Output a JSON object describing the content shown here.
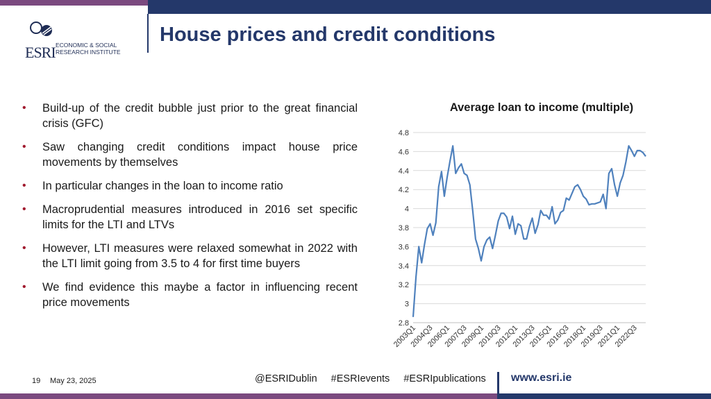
{
  "header": {
    "logo_abbr": "ESRI",
    "logo_line1": "ECONOMIC & SOCIAL",
    "logo_line2": "RESEARCH INSTITUTE",
    "title": "House prices and credit conditions"
  },
  "bullets": [
    "Build-up of the credit bubble just prior to the great financial crisis (GFC)",
    "Saw changing credit conditions impact house price movements by themselves",
    "In particular changes in the loan to income ratio",
    "Macroprudential measures introduced in 2016 set specific limits for the LTI and LTVs",
    "However, LTI measures were relaxed somewhat in 2022 with the LTI limit going from 3.5 to 4 for first time buyers",
    "We find evidence this maybe a factor in influencing recent price movements"
  ],
  "chart_data": {
    "type": "line",
    "title": "Average loan to income (multiple)",
    "xlabel": "",
    "ylabel": "",
    "ylim": [
      2.8,
      4.8
    ],
    "yticks": [
      2.8,
      3,
      3.2,
      3.4,
      3.6,
      3.8,
      4,
      4.2,
      4.4,
      4.6,
      4.8
    ],
    "ytick_labels": [
      "2.8",
      "3",
      "3.2",
      "3.4",
      "3.6",
      "3.8",
      "4",
      "4.2",
      "4.4",
      "4.6",
      "4.8"
    ],
    "x_tick_labels": [
      {
        "index": 0,
        "label": "2003Q1"
      },
      {
        "index": 6,
        "label": "2004Q3"
      },
      {
        "index": 12,
        "label": "2006Q1"
      },
      {
        "index": 18,
        "label": "2007Q3"
      },
      {
        "index": 24,
        "label": "2009Q1"
      },
      {
        "index": 30,
        "label": "2010Q3"
      },
      {
        "index": 36,
        "label": "2012Q1"
      },
      {
        "index": 42,
        "label": "2013Q3"
      },
      {
        "index": 48,
        "label": "2015Q1"
      },
      {
        "index": 54,
        "label": "2016Q3"
      },
      {
        "index": 60,
        "label": "2018Q1"
      },
      {
        "index": 66,
        "label": "2019Q3"
      },
      {
        "index": 72,
        "label": "2021Q1"
      },
      {
        "index": 78,
        "label": "2022Q3"
      }
    ],
    "grid": true,
    "line_color": "#4f81bd",
    "series": [
      {
        "values": [
          2.86,
          3.28,
          3.6,
          3.43,
          3.62,
          3.79,
          3.84,
          3.72,
          3.85,
          4.23,
          4.39,
          4.13,
          4.33,
          4.5,
          4.66,
          4.37,
          4.43,
          4.47,
          4.37,
          4.35,
          4.25,
          3.98,
          3.68,
          3.58,
          3.45,
          3.6,
          3.67,
          3.7,
          3.58,
          3.72,
          3.87,
          3.95,
          3.95,
          3.91,
          3.79,
          3.92,
          3.73,
          3.84,
          3.82,
          3.68,
          3.68,
          3.81,
          3.9,
          3.74,
          3.83,
          3.98,
          3.93,
          3.93,
          3.89,
          4.02,
          3.84,
          3.88,
          3.96,
          3.98,
          4.11,
          4.09,
          4.16,
          4.23,
          4.25,
          4.2,
          4.13,
          4.1,
          4.04,
          4.05,
          4.05,
          4.06,
          4.07,
          4.15,
          4.0,
          4.37,
          4.42,
          4.25,
          4.13,
          4.27,
          4.35,
          4.49,
          4.66,
          4.61,
          4.55,
          4.61,
          4.61,
          4.59,
          4.55
        ]
      }
    ]
  },
  "footer": {
    "page_number": "19",
    "date": "May 23, 2025",
    "socials": [
      "@ESRIDublin",
      "#ESRIevents",
      "#ESRIpublications"
    ],
    "website": "www.esri.ie"
  }
}
